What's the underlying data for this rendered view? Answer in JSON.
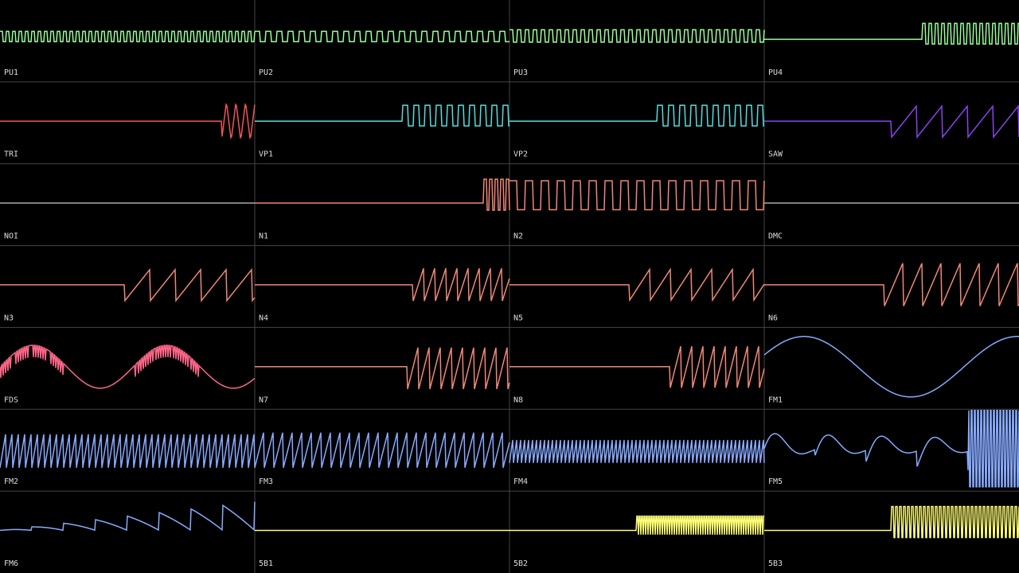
{
  "channels": [
    "PU1",
    "PU2",
    "PU3",
    "PU4",
    "TRI",
    "VP1",
    "VP2",
    "SAW",
    "NOI",
    "N1",
    "N2",
    "DMC",
    "N3",
    "N4",
    "N5",
    "N6",
    "FDS",
    "N7",
    "N8",
    "FM1",
    "FM2",
    "FM3",
    "FM4",
    "FM5",
    "FM6",
    "5B1",
    "5B2",
    "5B3"
  ]
}
